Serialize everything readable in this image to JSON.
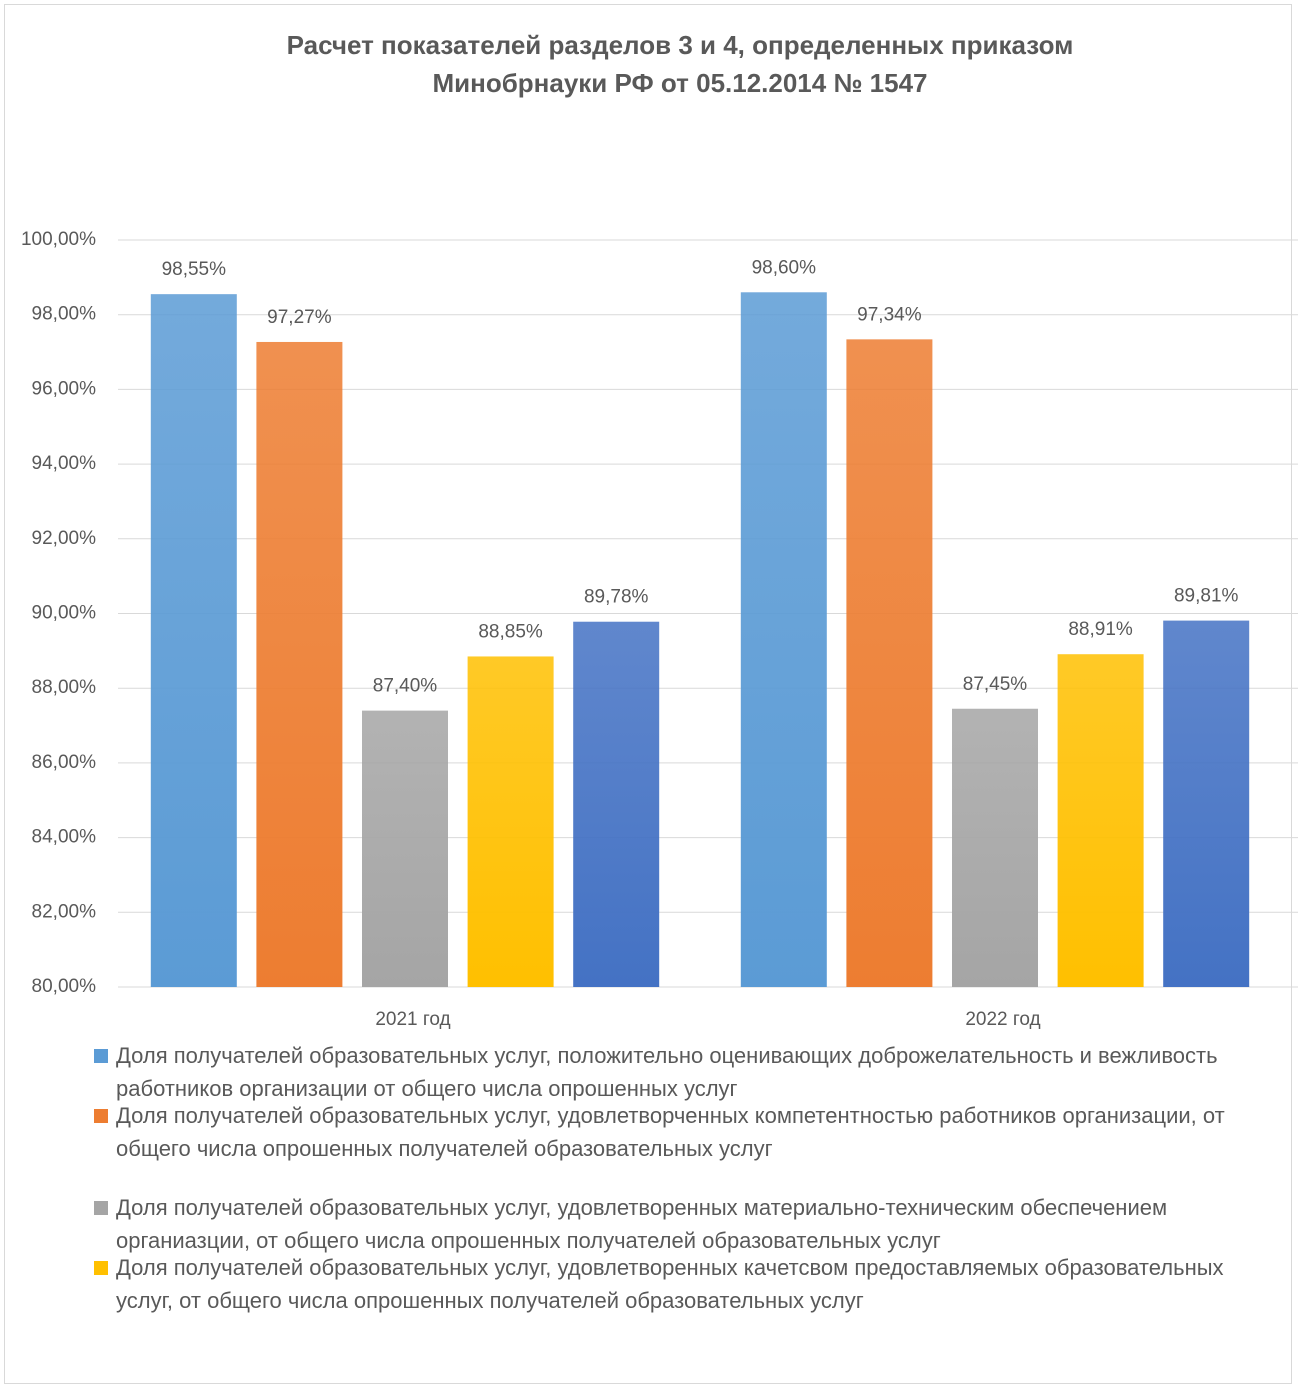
{
  "chart_data": {
    "type": "bar",
    "title": "Расчет показателей разделов 3 и 4, определенных приказом Минобрнауки РФ от 05.12.2014 № 1547",
    "categories": [
      "2021 год",
      "2022 год"
    ],
    "series": [
      {
        "name": "Доля получателей образовательных услуг, положительно оценивающих доброжелательность и вежливость работников организации от общего числа опрошенных услуг",
        "color": "#5b9bd5",
        "values": [
          98.55,
          98.6
        ],
        "value_labels": [
          "98,55%",
          "98,60%"
        ]
      },
      {
        "name": "Доля получателей образовательных услуг, удовлетворченных компетентностью работников организации, от общего числа опрошенных  получателей образовательных услуг",
        "color": "#ed7d31",
        "values": [
          97.27,
          97.34
        ],
        "value_labels": [
          "97,27%",
          "97,34%"
        ]
      },
      {
        "name": "Доля получателей  образовательных услуг, удовлетворенных материально-техническим обеспечением органиазции, от общего числа опрошенных получателей образовательных услуг",
        "color": "#a5a5a5",
        "values": [
          87.4,
          87.45
        ],
        "value_labels": [
          "87,40%",
          "87,45%"
        ]
      },
      {
        "name": "Доля получателей образовательных услуг, удовлетворенных качетсвом предоставляемых образовательных услуг, от общего числа опрошенных получателей образовательных услуг",
        "color": "#ffc000",
        "values": [
          88.85,
          88.91
        ],
        "value_labels": [
          "88,85%",
          "88,91%"
        ]
      },
      {
        "color": "#4472c4",
        "values": [
          89.78,
          89.81
        ],
        "value_labels": [
          "89,78%",
          "89,81%"
        ]
      }
    ],
    "ylim": [
      80,
      100
    ],
    "yticks": [
      {
        "value": 80,
        "label": "80,00%"
      },
      {
        "value": 82,
        "label": "82,00%"
      },
      {
        "value": 84,
        "label": "84,00%"
      },
      {
        "value": 86,
        "label": "86,00%"
      },
      {
        "value": 88,
        "label": "88,00%"
      },
      {
        "value": 90,
        "label": "90,00%"
      },
      {
        "value": 92,
        "label": "92,00%"
      },
      {
        "value": 94,
        "label": "94,00%"
      },
      {
        "value": 96,
        "label": "96,00%"
      },
      {
        "value": 98,
        "label": "98,00%"
      },
      {
        "value": 100,
        "label": "100,00%"
      }
    ],
    "grid": true
  }
}
